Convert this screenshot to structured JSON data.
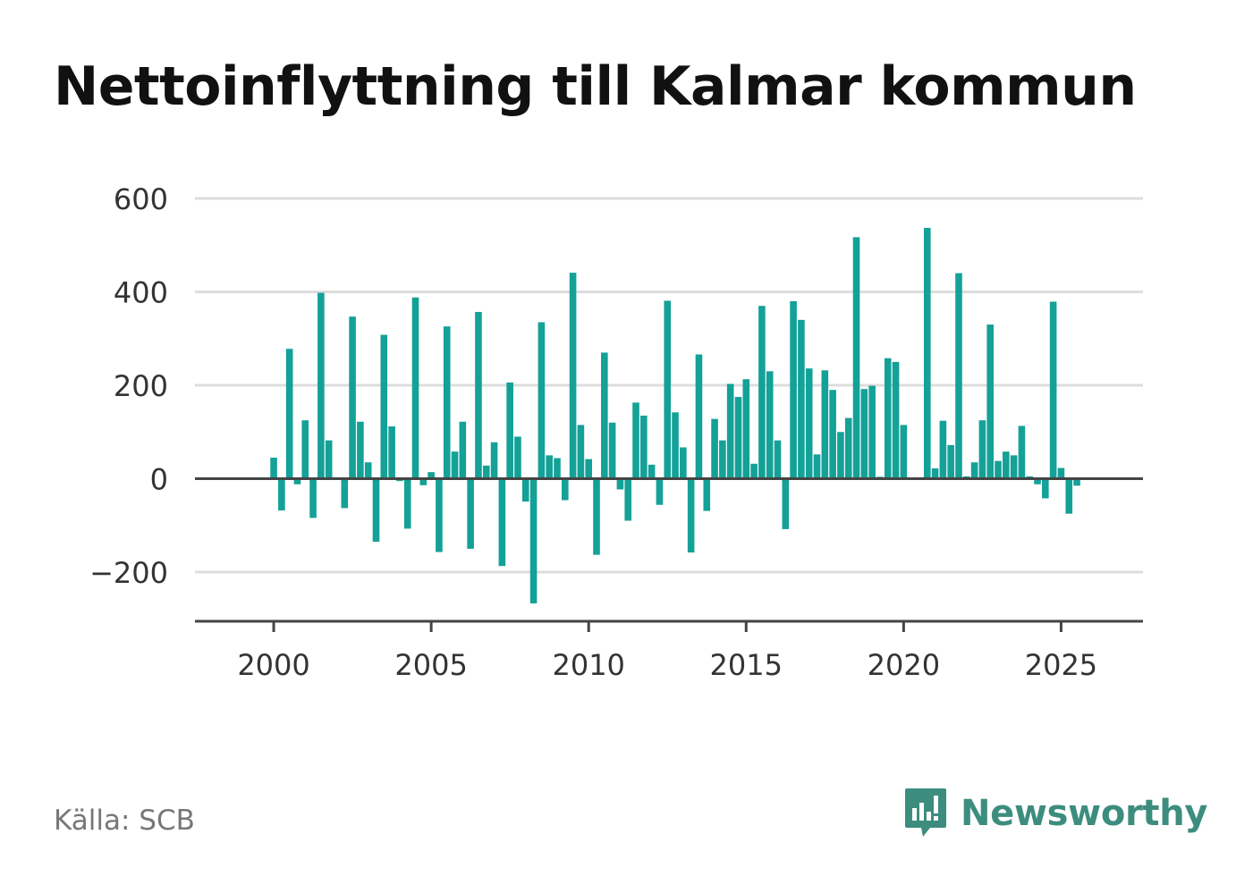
{
  "title": "Nettoinflyttning till Kalmar kommun",
  "source": "Källa: SCB",
  "brand": {
    "name": "Newsworthy",
    "icon": "newsworthy-logo-icon",
    "color": "#3d8d7e"
  },
  "colors": {
    "bar": "#14a197",
    "grid": "#dddddd",
    "axis": "#444444",
    "tick_text": "#333333"
  },
  "chart_data": {
    "type": "bar",
    "title": "Nettoinflyttning till Kalmar kommun",
    "xlabel": "",
    "ylabel": "",
    "ylim": [
      -300,
      600
    ],
    "yticks": [
      600,
      400,
      200,
      0,
      -200
    ],
    "ytick_labels": [
      "600",
      "400",
      "200",
      "0",
      "−200"
    ],
    "xlim": [
      1997.5,
      2027.6
    ],
    "xticks": [
      2000,
      2005,
      2010,
      2015,
      2020,
      2025
    ],
    "xtick_labels": [
      "2000",
      "2005",
      "2010",
      "2015",
      "2020",
      "2025"
    ],
    "grid": true,
    "legend": "none",
    "frequency": "quarterly",
    "x_start": "2000 Q1",
    "values": [
      45,
      -68,
      278,
      -12,
      125,
      -84,
      398,
      82,
      0,
      -63,
      347,
      122,
      35,
      -135,
      308,
      112,
      -5,
      -107,
      388,
      -14,
      14,
      -157,
      326,
      58,
      122,
      -150,
      357,
      28,
      78,
      -187,
      206,
      90,
      -49,
      -267,
      335,
      50,
      44,
      -46,
      441,
      115,
      42,
      -163,
      270,
      120,
      -23,
      -90,
      163,
      135,
      30,
      -56,
      381,
      142,
      67,
      -158,
      266,
      -69,
      128,
      82,
      203,
      175,
      213,
      32,
      370,
      230,
      82,
      -108,
      380,
      340,
      236,
      52,
      232,
      190,
      100,
      130,
      517,
      192,
      199,
      4,
      258,
      250,
      115,
      0,
      0,
      537,
      22,
      124,
      72,
      440,
      5,
      35,
      125,
      330,
      38,
      58,
      50,
      113,
      5,
      -12,
      -42,
      379,
      23,
      -75,
      -15
    ]
  }
}
